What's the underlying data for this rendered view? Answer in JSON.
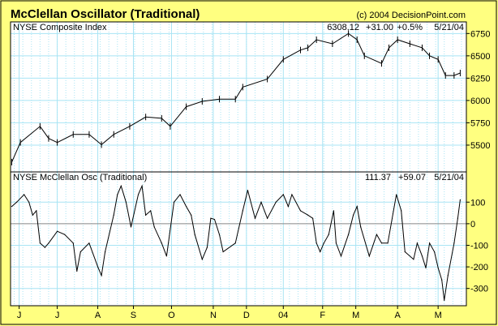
{
  "header": {
    "title": "McClellan Oscillator (Traditional)",
    "copyright": "(c) 2004 DecisionPoint.com"
  },
  "colors": {
    "background": "#ffff80",
    "plot": "#ffffff",
    "grid": "#a8e4f4",
    "line": "#000000"
  },
  "chart_data": [
    {
      "type": "line",
      "title": "NYSE Composite Index",
      "readout": {
        "last": "6308.12",
        "change": "+31.00",
        "pct": "+0.5%",
        "date": "5/21/04"
      },
      "x_unit": "days since 2003-05-22",
      "xlim": [
        0,
        371
      ],
      "ylim": [
        5200,
        6880
      ],
      "yticks": [
        5500,
        5750,
        6000,
        6250,
        6500,
        6750
      ],
      "x": [
        1,
        8,
        24,
        31,
        38,
        51,
        64,
        74,
        84,
        97,
        110,
        123,
        130,
        143,
        156,
        170,
        183,
        189,
        209,
        222,
        236,
        242,
        249,
        262,
        275,
        282,
        288,
        302,
        308,
        315,
        325,
        335,
        341,
        348,
        354,
        361,
        366
      ],
      "values": [
        5310,
        5530,
        5710,
        5575,
        5530,
        5620,
        5620,
        5505,
        5620,
        5710,
        5815,
        5800,
        5710,
        5930,
        5990,
        6015,
        6015,
        6150,
        6240,
        6460,
        6565,
        6590,
        6680,
        6635,
        6750,
        6680,
        6500,
        6415,
        6590,
        6680,
        6635,
        6590,
        6500,
        6460,
        6280,
        6280,
        6308
      ],
      "grid": true
    },
    {
      "type": "line",
      "title": "NYSE McClellan Osc (Traditional)",
      "readout": {
        "last": "111.37",
        "change": "+59.07",
        "date": "5/21/04"
      },
      "x_unit": "days since 2003-05-22",
      "xlim": [
        0,
        371
      ],
      "ylim": [
        -380,
        240
      ],
      "yticks": [
        100,
        0,
        -100,
        -200,
        -300
      ],
      "x": [
        1,
        5,
        11,
        15,
        18,
        21,
        24,
        28,
        31,
        38,
        44,
        51,
        54,
        57,
        64,
        71,
        74,
        77,
        84,
        87,
        90,
        94,
        98,
        104,
        107,
        110,
        114,
        117,
        123,
        127,
        133,
        138,
        143,
        147,
        150,
        156,
        160,
        163,
        166,
        170,
        173,
        183,
        189,
        193,
        199,
        204,
        209,
        216,
        222,
        226,
        229,
        236,
        242,
        246,
        249,
        252,
        255,
        259,
        263,
        265,
        269,
        275,
        279,
        282,
        285,
        292,
        298,
        302,
        307,
        314,
        318,
        321,
        328,
        331,
        335,
        338,
        341,
        345,
        348,
        351,
        353,
        356,
        361,
        364,
        366
      ],
      "values": [
        80,
        100,
        135,
        100,
        40,
        60,
        -90,
        -110,
        -90,
        -35,
        -50,
        -90,
        -220,
        -130,
        -90,
        -200,
        -240,
        -130,
        40,
        135,
        175,
        100,
        -15,
        135,
        175,
        40,
        60,
        -15,
        -90,
        -150,
        100,
        135,
        80,
        40,
        -50,
        -165,
        -110,
        25,
        20,
        -50,
        -130,
        -90,
        60,
        155,
        25,
        100,
        25,
        100,
        135,
        80,
        135,
        60,
        40,
        25,
        -90,
        -130,
        -90,
        -50,
        60,
        -90,
        -150,
        -50,
        40,
        80,
        -15,
        -150,
        -50,
        -90,
        -90,
        135,
        60,
        -130,
        -165,
        -90,
        -150,
        -205,
        -90,
        -130,
        -205,
        -260,
        -355,
        -240,
        -90,
        25,
        111
      ],
      "grid": true
    }
  ],
  "x_axis": {
    "ticks": [
      {
        "label": "J",
        "day": 7
      },
      {
        "label": "J",
        "day": 38
      },
      {
        "label": "A",
        "day": 71
      },
      {
        "label": "S",
        "day": 100
      },
      {
        "label": "O",
        "day": 131
      },
      {
        "label": "N",
        "day": 165
      },
      {
        "label": "D",
        "day": 192
      },
      {
        "label": "04",
        "day": 222
      },
      {
        "label": "F",
        "day": 254
      },
      {
        "label": "M",
        "day": 281
      },
      {
        "label": "A",
        "day": 315
      },
      {
        "label": "M",
        "day": 348
      }
    ]
  }
}
